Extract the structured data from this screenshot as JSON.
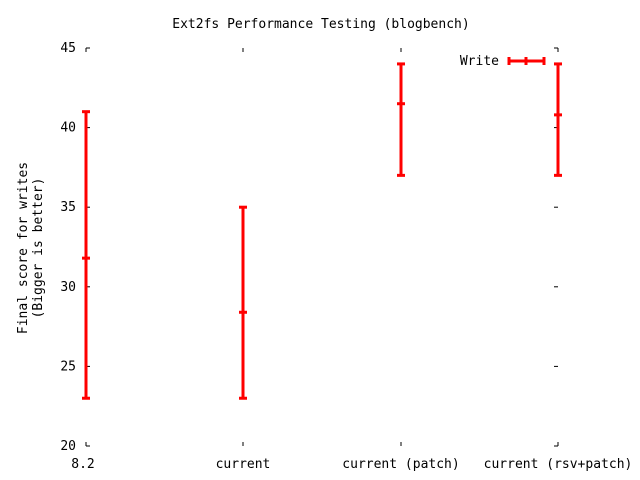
{
  "chart_data": {
    "type": "errorbar",
    "title": "Ext2fs Performance Testing (blogbench)",
    "xlabel": "",
    "ylabel_line1": "Final score for writes",
    "ylabel_line2": "(Bigger is better)",
    "ylim": [
      20,
      45
    ],
    "yticks": [
      20,
      25,
      30,
      35,
      40,
      45
    ],
    "categories": [
      "8.2",
      "current",
      "current (patch)",
      "current (rsv+patch)"
    ],
    "series": [
      {
        "name": "Write",
        "color": "#ff0000",
        "points": [
          {
            "category": "8.2",
            "value": 31.8,
            "low": 23.0,
            "high": 41.0
          },
          {
            "category": "current",
            "value": 28.4,
            "low": 23.0,
            "high": 35.0
          },
          {
            "category": "current (patch)",
            "value": 41.5,
            "low": 37.0,
            "high": 44.0
          },
          {
            "category": "current (rsv+patch)",
            "value": 40.8,
            "low": 37.0,
            "high": 44.0
          }
        ]
      }
    ],
    "legend_position": "top-right",
    "grid": false
  }
}
